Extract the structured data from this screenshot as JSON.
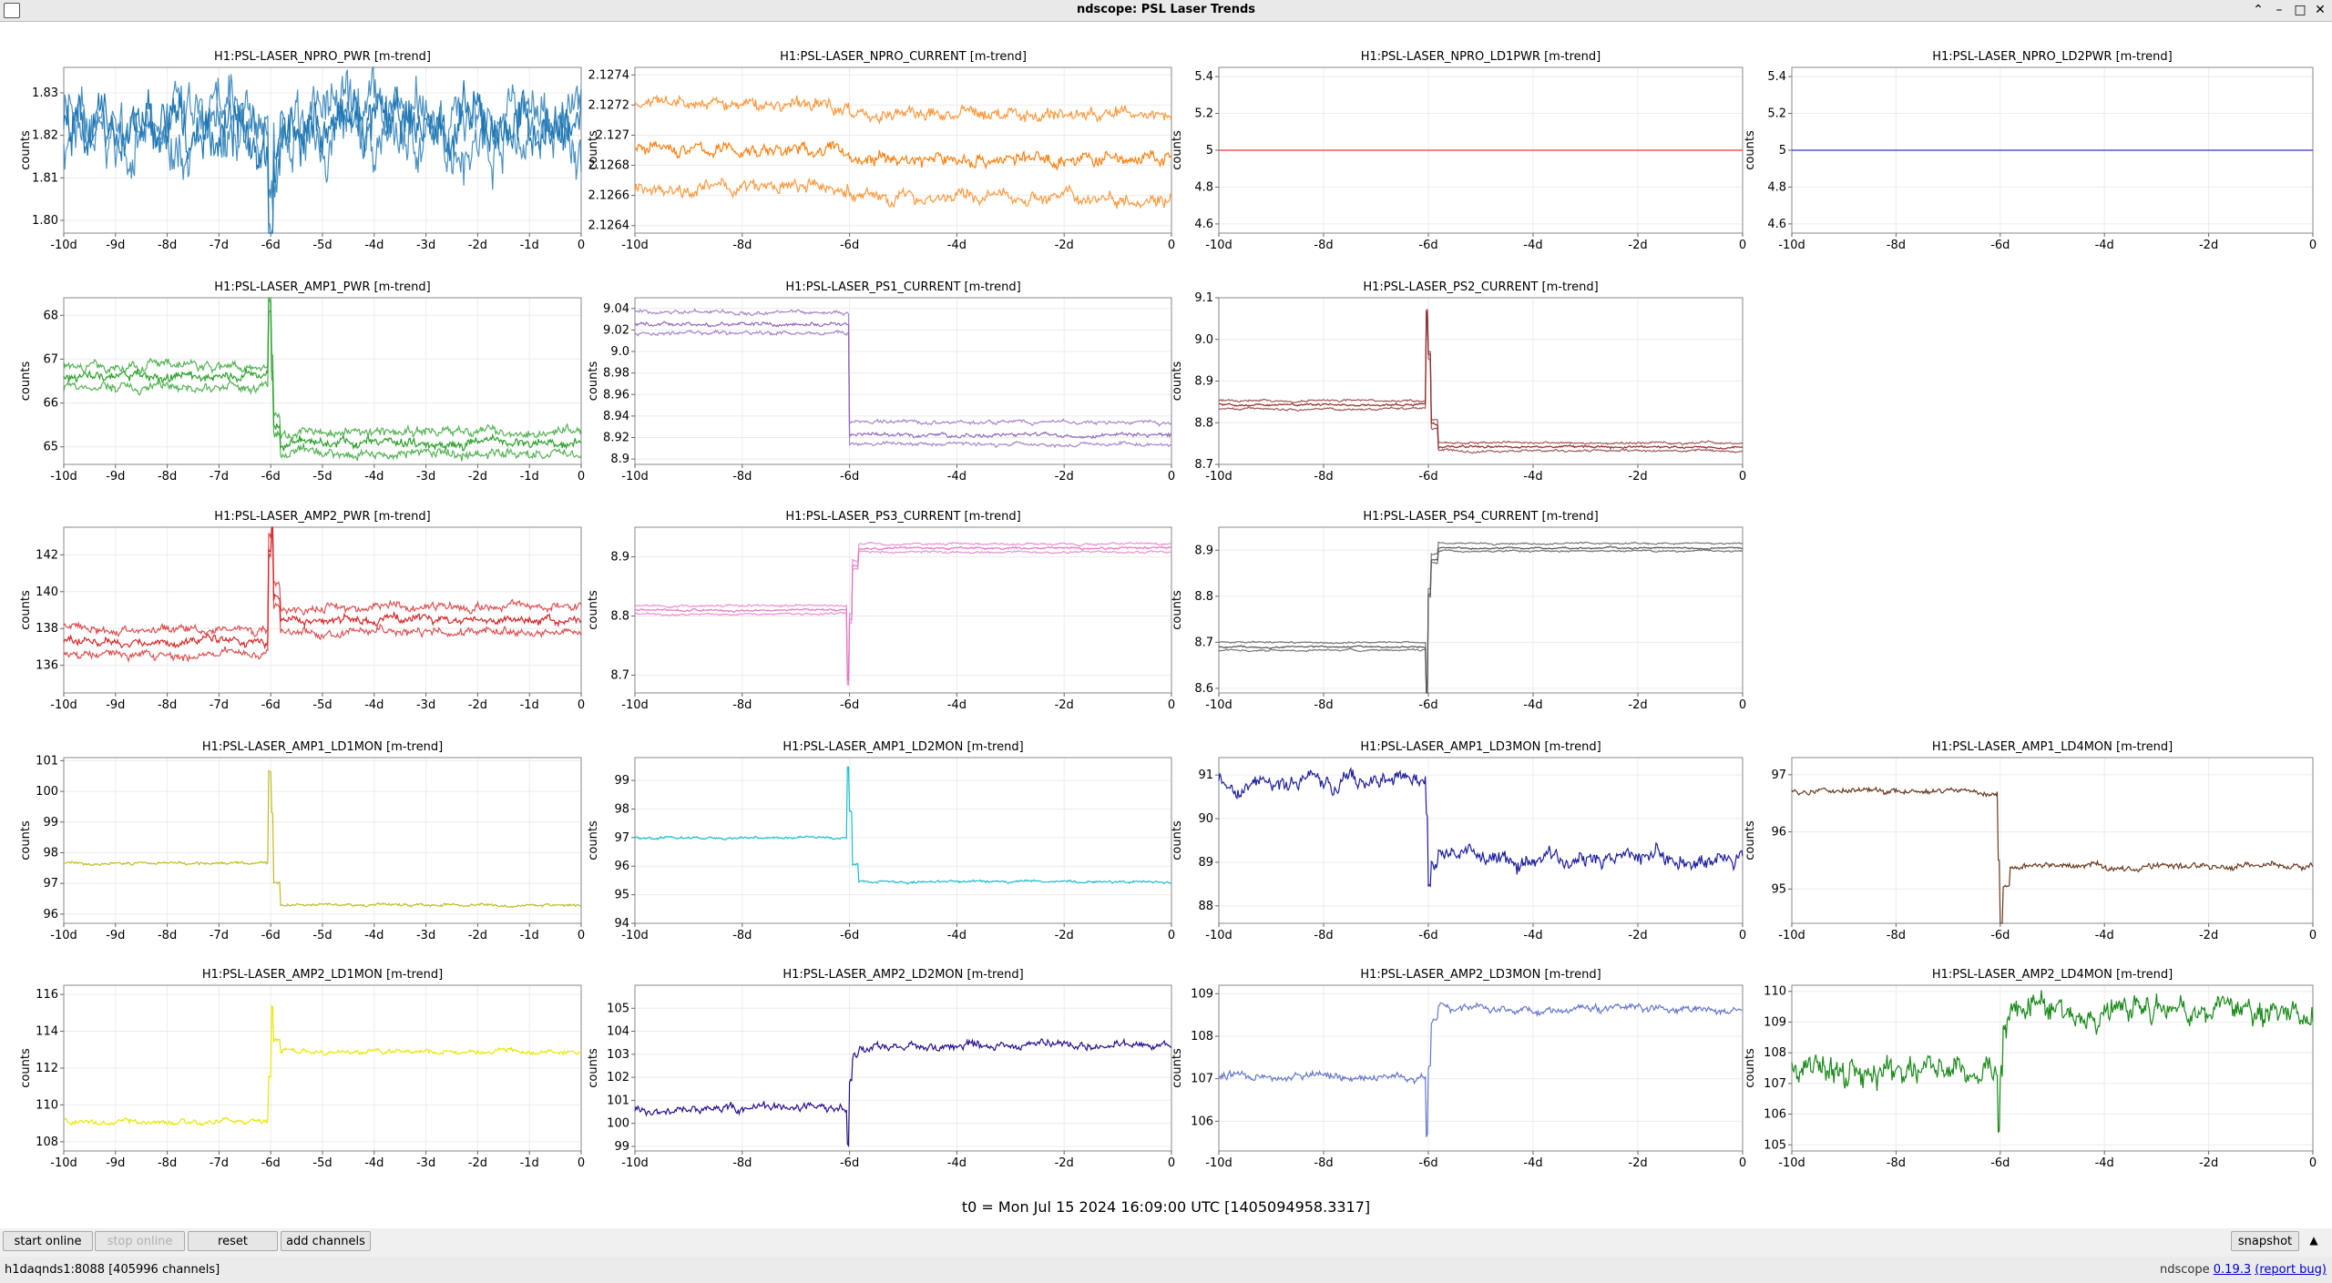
{
  "window": {
    "title": "ndscope: PSL Laser Trends"
  },
  "plot_unit": "counts",
  "t0_label": "t0 = Mon Jul 15 2024 16:09:00 UTC [1405094958.3317]",
  "buttons": {
    "start_online": "start online",
    "stop_online": "stop online",
    "reset": "reset",
    "add_channels": "add channels",
    "snapshot": "snapshot"
  },
  "status": {
    "server": "h1daqnds1:8088  [405996 channels]",
    "version_prefix": "ndscope ",
    "version": "0.19.3",
    "report_bug": "(report bug)"
  },
  "xticks": {
    "a": [
      "-10d",
      "-9d",
      "-8d",
      "-7d",
      "-6d",
      "-5d",
      "-4d",
      "-3d",
      "-2d",
      "-1d",
      "0"
    ],
    "b": [
      "-10d",
      "-8d",
      "-6d",
      "-4d",
      "-2d",
      "0"
    ]
  },
  "colors": {
    "npro_pwr": "#1f77b4",
    "npro_current": "#ff7f0e",
    "ld1pwr": "#ff3333",
    "ld2pwr": "#3333cc",
    "amp1_pwr": "#2ca02c",
    "ps1": "#9467bd",
    "ps2": "#8c2d2d",
    "amp2_pwr": "#d62728",
    "ps3": "#e377c2",
    "ps4": "#555555",
    "amp1_ld1": "#bcbd22",
    "amp1_ld2": "#17becf",
    "amp1_ld3": "#1f1fa0",
    "amp1_ld4": "#6b3a1f",
    "amp2_ld1": "#e8e800",
    "amp2_ld2": "#2a0e8f",
    "amp2_ld3": "#6677cc",
    "amp2_ld4": "#1a8a1a"
  },
  "chart_data": [
    {
      "type": "line",
      "title": "H1:PSL-LASER_NPRO_PWR [m-trend]",
      "ylabel": "counts",
      "xticks": "a",
      "ylim": [
        1.797,
        1.836
      ],
      "yticks": [
        "1.80",
        "1.81",
        "1.82",
        "1.83"
      ],
      "ytick_values": [
        1.8,
        1.81,
        1.82,
        1.83
      ],
      "color_key": "npro_pwr",
      "before": 1.821,
      "after": 1.822,
      "noise": 0.007,
      "spike": -0.02,
      "bands": [
        -0.003,
        0,
        0.003
      ]
    },
    {
      "type": "line",
      "title": "H1:PSL-LASER_NPRO_CURRENT [m-trend]",
      "ylabel": "counts",
      "xticks": "b",
      "ylim": [
        2.12635,
        2.12745
      ],
      "yticks": [
        "2.1264",
        "2.1266",
        "2.1268",
        "2.127",
        "2.1272",
        "2.1274"
      ],
      "ytick_values": [
        2.1264,
        2.1266,
        2.1268,
        2.127,
        2.1272,
        2.1274
      ],
      "color_key": "npro_current",
      "before": 2.1269,
      "after": 2.12684,
      "noise": 5e-05,
      "spike": 0,
      "bands": [
        -0.00025,
        0,
        0.0003
      ]
    },
    {
      "type": "line",
      "title": "H1:PSL-LASER_NPRO_LD1PWR [m-trend]",
      "ylabel": "counts",
      "xticks": "b",
      "ylim": [
        4.55,
        5.45
      ],
      "yticks": [
        "4.6",
        "4.8",
        "5",
        "5.2",
        "5.4"
      ],
      "ytick_values": [
        4.6,
        4.8,
        5,
        5.2,
        5.4
      ],
      "color_key": "ld1pwr",
      "before": 5,
      "after": 5,
      "noise": 0,
      "spike": 0,
      "bands": [
        0
      ]
    },
    {
      "type": "line",
      "title": "H1:PSL-LASER_NPRO_LD2PWR [m-trend]",
      "ylabel": "counts",
      "xticks": "b",
      "ylim": [
        4.55,
        5.45
      ],
      "yticks": [
        "4.6",
        "4.8",
        "5",
        "5.2",
        "5.4"
      ],
      "ytick_values": [
        4.6,
        4.8,
        5,
        5.2,
        5.4
      ],
      "color_key": "ld2pwr",
      "before": 5,
      "after": 5,
      "noise": 0,
      "spike": 0,
      "bands": [
        0
      ]
    },
    {
      "type": "line",
      "title": "H1:PSL-LASER_AMP1_PWR [m-trend]",
      "ylabel": "counts",
      "xticks": "a",
      "ylim": [
        64.6,
        68.4
      ],
      "yticks": [
        "65",
        "66",
        "67",
        "68"
      ],
      "ytick_values": [
        65,
        66,
        67,
        68
      ],
      "color_key": "amp1_pwr",
      "before": 66.6,
      "after": 65.1,
      "noise": 0.12,
      "spike": 1.7,
      "bands": [
        -0.25,
        0,
        0.25
      ]
    },
    {
      "type": "line",
      "title": "H1:PSL-LASER_PS1_CURRENT [m-trend]",
      "ylabel": "counts",
      "xticks": "b",
      "ylim": [
        8.895,
        9.05
      ],
      "yticks": [
        "8.9",
        "8.92",
        "8.94",
        "8.96",
        "8.98",
        "9.0",
        "9.02",
        "9.04"
      ],
      "ytick_values": [
        8.9,
        8.92,
        8.94,
        8.96,
        8.98,
        9.0,
        9.02,
        9.04
      ],
      "color_key": "ps1",
      "before": 9.025,
      "after": 8.922,
      "noise": 0.002,
      "spike": 0,
      "bands": [
        -0.008,
        0,
        0.012
      ]
    },
    {
      "type": "line",
      "title": "H1:PSL-LASER_PS2_CURRENT [m-trend]",
      "ylabel": "counts",
      "xticks": "b",
      "ylim": [
        8.7,
        9.1
      ],
      "yticks": [
        "8.7",
        "8.8",
        "8.9",
        "9.0",
        "9.1"
      ],
      "ytick_values": [
        8.7,
        8.8,
        8.9,
        9.0,
        9.1
      ],
      "color_key": "ps2",
      "before": 8.843,
      "after": 8.742,
      "noise": 0.003,
      "spike": 0.22,
      "bands": [
        -0.01,
        0,
        0.01
      ]
    },
    {
      "type": "line",
      "title": "H1:PSL-LASER_AMP2_PWR [m-trend]",
      "ylabel": "counts",
      "xticks": "a",
      "ylim": [
        134.5,
        143.5
      ],
      "yticks": [
        "136",
        "138",
        "140",
        "142"
      ],
      "ytick_values": [
        136,
        138,
        140,
        142
      ],
      "color_key": "amp2_pwr",
      "before": 137.3,
      "after": 138.5,
      "noise": 0.25,
      "spike": 5,
      "bands": [
        -0.7,
        0,
        0.7
      ]
    },
    {
      "type": "line",
      "title": "H1:PSL-LASER_PS3_CURRENT [m-trend]",
      "ylabel": "counts",
      "xticks": "b",
      "ylim": [
        8.67,
        8.95
      ],
      "yticks": [
        "8.7",
        "8.8",
        "8.9"
      ],
      "ytick_values": [
        8.7,
        8.8,
        8.9
      ],
      "color_key": "ps3",
      "before": 8.81,
      "after": 8.915,
      "noise": 0.002,
      "spike": -0.12,
      "bands": [
        -0.007,
        0,
        0.007
      ]
    },
    {
      "type": "line",
      "title": "H1:PSL-LASER_PS4_CURRENT [m-trend]",
      "ylabel": "counts",
      "xticks": "b",
      "ylim": [
        8.59,
        8.95
      ],
      "yticks": [
        "8.6",
        "8.7",
        "8.8",
        "8.9"
      ],
      "ytick_values": [
        8.6,
        8.7,
        8.8,
        8.9
      ],
      "color_key": "ps4",
      "before": 8.69,
      "after": 8.905,
      "noise": 0.002,
      "spike": -0.1,
      "bands": [
        -0.007,
        0,
        0.01
      ]
    },
    {
      "type": "line",
      "title": "H1:PSL-LASER_AMP1_LD1MON [m-trend]",
      "ylabel": "counts",
      "xticks": "a",
      "ylim": [
        95.7,
        101.1
      ],
      "yticks": [
        "96",
        "97",
        "98",
        "99",
        "100",
        "101"
      ],
      "ytick_values": [
        96,
        97,
        98,
        99,
        100,
        101
      ],
      "color_key": "amp1_ld1",
      "before": 97.65,
      "after": 96.3,
      "noise": 0.05,
      "spike": 3,
      "bands": [
        0
      ]
    },
    {
      "type": "line",
      "title": "H1:PSL-LASER_AMP1_LD2MON [m-trend]",
      "ylabel": "counts",
      "xticks": "b",
      "ylim": [
        94,
        99.8
      ],
      "yticks": [
        "94",
        "95",
        "96",
        "97",
        "98",
        "99"
      ],
      "ytick_values": [
        94,
        95,
        96,
        97,
        98,
        99
      ],
      "color_key": "amp1_ld2",
      "before": 97,
      "after": 95.45,
      "noise": 0.05,
      "spike": 2.5,
      "bands": [
        0
      ]
    },
    {
      "type": "line",
      "title": "H1:PSL-LASER_AMP1_LD3MON [m-trend]",
      "ylabel": "counts",
      "xticks": "b",
      "ylim": [
        87.6,
        91.4
      ],
      "yticks": [
        "88",
        "89",
        "90",
        "91"
      ],
      "ytick_values": [
        88,
        89,
        90,
        91
      ],
      "color_key": "amp1_ld3",
      "before": 90.85,
      "after": 89.1,
      "noise": 0.2,
      "spike": -0.8,
      "bands": [
        0
      ]
    },
    {
      "type": "line",
      "title": "H1:PSL-LASER_AMP1_LD4MON [m-trend]",
      "ylabel": "counts",
      "xticks": "b",
      "ylim": [
        94.4,
        97.3
      ],
      "yticks": [
        "95",
        "96",
        "97"
      ],
      "ytick_values": [
        95,
        96,
        97
      ],
      "color_key": "amp1_ld4",
      "before": 96.7,
      "after": 95.4,
      "noise": 0.06,
      "spike": -1.2,
      "bands": [
        0
      ]
    },
    {
      "type": "line",
      "title": "H1:PSL-LASER_AMP2_LD1MON [m-trend]",
      "ylabel": "counts",
      "xticks": "a",
      "ylim": [
        107.5,
        116.5
      ],
      "yticks": [
        "108",
        "110",
        "112",
        "114",
        "116"
      ],
      "ytick_values": [
        108,
        110,
        112,
        114,
        116
      ],
      "color_key": "amp2_ld1",
      "before": 109.1,
      "after": 112.9,
      "noise": 0.15,
      "spike": 2.5,
      "bands": [
        0
      ]
    },
    {
      "type": "line",
      "title": "H1:PSL-LASER_AMP2_LD2MON [m-trend]",
      "ylabel": "counts",
      "xticks": "b",
      "ylim": [
        98.8,
        106
      ],
      "yticks": [
        "99",
        "100",
        "101",
        "102",
        "103",
        "104",
        "105"
      ],
      "ytick_values": [
        99,
        100,
        101,
        102,
        103,
        104,
        105
      ],
      "color_key": "amp2_ld2",
      "before": 100.6,
      "after": 103.4,
      "noise": 0.2,
      "spike": -1.5,
      "bands": [
        0
      ]
    },
    {
      "type": "line",
      "title": "H1:PSL-LASER_AMP2_LD3MON [m-trend]",
      "ylabel": "counts",
      "xticks": "b",
      "ylim": [
        105.3,
        109.2
      ],
      "yticks": [
        "106",
        "107",
        "108",
        "109"
      ],
      "ytick_values": [
        106,
        107,
        108,
        109
      ],
      "color_key": "amp2_ld3",
      "before": 107.05,
      "after": 108.65,
      "noise": 0.1,
      "spike": -1.4,
      "bands": [
        0
      ]
    },
    {
      "type": "line",
      "title": "H1:PSL-LASER_AMP2_LD4MON [m-trend]",
      "ylabel": "counts",
      "xticks": "b",
      "ylim": [
        104.8,
        110.2
      ],
      "yticks": [
        "105",
        "106",
        "107",
        "108",
        "109",
        "110"
      ],
      "ytick_values": [
        105,
        106,
        107,
        108,
        109,
        110
      ],
      "color_key": "amp2_ld4",
      "before": 107.4,
      "after": 109.4,
      "noise": 0.5,
      "spike": -2,
      "bands": [
        0
      ]
    }
  ]
}
